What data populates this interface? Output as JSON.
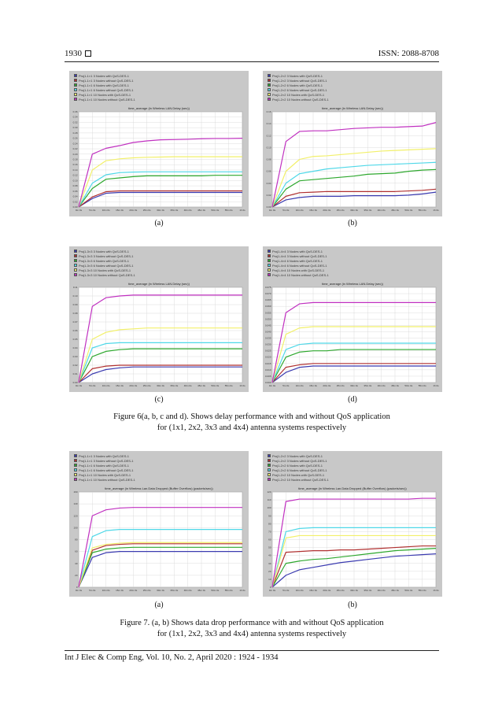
{
  "header": {
    "page_number": "1930",
    "issn": "ISSN: 2088-8708"
  },
  "footer": "Int J Elec & Comp Eng, Vol. 10, No. 2, April 2020 :  1924 - 1934",
  "figure6_caption": [
    "Figure 6(a, b, c and d). Shows delay performance with and without QoS application",
    "for (1x1, 2x2, 3x3 and 4x4) antenna systems respectively"
  ],
  "figure7_caption": [
    "Figure 7. (a, b) Shows data drop performance with and without QoS application",
    "for (1x1, 2x2, 3x3 and 4x4) antenna systems respectively"
  ],
  "subfig_labels": {
    "a": "(a)",
    "b": "(b)",
    "c": "(c)",
    "d": "(d)"
  },
  "chart_data": [
    {
      "type": "line",
      "id": "fig6a",
      "title": "time_average (in Wireless LAN.Delay (sec))",
      "legend": [
        "Proj1-1×1 3 Nodes with QoS-DES-1",
        "Proj1-1×1 3 Nodes without QoS-DES-1",
        "Proj1-1×1 6 Nodes with QoS-DES-1",
        "Proj1-1×1 6 Nodes without QoS-DES-1",
        "Proj1-1×1 10 Nodes with QoS-DES-1",
        "Proj1-1×1 10 Nodes without QoS-DES-1"
      ],
      "colors": [
        "#3b3bb0",
        "#b03030",
        "#2ea82e",
        "#4fd8e8",
        "#f2f06a",
        "#c030c0"
      ],
      "ylim": [
        0,
        0.36
      ],
      "yticks": [
        "0.00",
        "0.02",
        "0.04",
        "0.06",
        "0.08",
        "0.10",
        "0.12",
        "0.14",
        "0.16",
        "0.18",
        "0.20",
        "0.22",
        "0.24",
        "0.26",
        "0.28",
        "0.30",
        "0.32",
        "0.34",
        "0.36"
      ],
      "xticks": [
        "0m 0s",
        "5m 0s",
        "10m 0s",
        "15m 0s",
        "20m 0s",
        "25m 0s",
        "30m 0s",
        "35m 0s",
        "40m 0s",
        "45m 0s",
        "50m 0s",
        "55m 0s",
        "1h 0s"
      ],
      "x": [
        0,
        1,
        2,
        3,
        4,
        5,
        6,
        7,
        8,
        9,
        10,
        11,
        12
      ],
      "series": [
        {
          "values": [
            0.0,
            0.032,
            0.052,
            0.055,
            0.055,
            0.055,
            0.055,
            0.055,
            0.055,
            0.055,
            0.055,
            0.055,
            0.055
          ]
        },
        {
          "values": [
            0.0,
            0.038,
            0.058,
            0.061,
            0.061,
            0.061,
            0.061,
            0.061,
            0.061,
            0.061,
            0.061,
            0.061,
            0.061
          ]
        },
        {
          "values": [
            0.0,
            0.07,
            0.105,
            0.11,
            0.115,
            0.118,
            0.118,
            0.118,
            0.118,
            0.118,
            0.12,
            0.12,
            0.12
          ]
        },
        {
          "values": [
            0.0,
            0.09,
            0.122,
            0.13,
            0.132,
            0.133,
            0.133,
            0.133,
            0.133,
            0.133,
            0.133,
            0.133,
            0.133
          ]
        },
        {
          "values": [
            0.0,
            0.14,
            0.175,
            0.182,
            0.186,
            0.188,
            0.189,
            0.19,
            0.19,
            0.19,
            0.19,
            0.19,
            0.19
          ]
        },
        {
          "values": [
            0.0,
            0.2,
            0.222,
            0.232,
            0.244,
            0.25,
            0.254,
            0.255,
            0.256,
            0.258,
            0.259,
            0.259,
            0.26
          ]
        }
      ]
    },
    {
      "type": "line",
      "id": "fig6b",
      "title": "time_average (in Wireless LAN.Delay (sec))",
      "legend": [
        "Proj1-2×2 3 Nodes with QoS-DES-1",
        "Proj1-2×2 3 Nodes without QoS-DES-1",
        "Proj1-2×2 6 Nodes with QoS-DES-1",
        "Proj1-2×2 6 Nodes without QoS-DES-1",
        "Proj1-2×2 10 Nodes with QoS-DES-1",
        "Proj1-2×2 10 Nodes without QoS-DES-1"
      ],
      "colors": [
        "#3b3bb0",
        "#b03030",
        "#2ea82e",
        "#4fd8e8",
        "#f2f06a",
        "#c030c0"
      ],
      "ylim": [
        0,
        0.16
      ],
      "yticks": [
        "0.00",
        "0.02",
        "0.04",
        "0.06",
        "0.08",
        "0.10",
        "0.12",
        "0.14",
        "0.16"
      ],
      "xticks": [
        "0m 0s",
        "5m 0s",
        "10m 0s",
        "15m 0s",
        "20m 0s",
        "25m 0s",
        "30m 0s",
        "35m 0s",
        "40m 0s",
        "45m 0s",
        "50m 0s",
        "55m 0s",
        "1h 0s"
      ],
      "x": [
        0,
        1,
        2,
        3,
        4,
        5,
        6,
        7,
        8,
        9,
        10,
        11,
        12
      ],
      "series": [
        {
          "values": [
            0.0,
            0.012,
            0.016,
            0.018,
            0.018,
            0.018,
            0.019,
            0.019,
            0.019,
            0.019,
            0.02,
            0.022,
            0.025
          ]
        },
        {
          "values": [
            0.0,
            0.018,
            0.024,
            0.025,
            0.026,
            0.026,
            0.026,
            0.026,
            0.026,
            0.026,
            0.027,
            0.028,
            0.03
          ]
        },
        {
          "values": [
            0.0,
            0.03,
            0.044,
            0.046,
            0.048,
            0.05,
            0.052,
            0.055,
            0.056,
            0.057,
            0.06,
            0.062,
            0.063
          ]
        },
        {
          "values": [
            0.0,
            0.04,
            0.056,
            0.06,
            0.064,
            0.066,
            0.068,
            0.07,
            0.071,
            0.072,
            0.073,
            0.074,
            0.075
          ]
        },
        {
          "values": [
            0.0,
            0.06,
            0.08,
            0.085,
            0.086,
            0.088,
            0.09,
            0.092,
            0.094,
            0.095,
            0.096,
            0.097,
            0.098
          ]
        },
        {
          "values": [
            0.0,
            0.11,
            0.127,
            0.128,
            0.128,
            0.13,
            0.132,
            0.133,
            0.134,
            0.134,
            0.135,
            0.136,
            0.142
          ]
        }
      ]
    },
    {
      "type": "line",
      "id": "fig6c",
      "title": "time_average (in Wireless LAN.Delay (sec))",
      "legend": [
        "Proj1-3×3 3 Nodes with QoS-DES-1",
        "Proj1-3×3 3 Nodes without QoS-DES-1",
        "Proj1-3×3 6 Nodes with QoS-DES-1",
        "Proj1-3×3 6 Nodes without QoS-DES-1",
        "Proj1-3×3 10 Nodes with QoS-DES-1",
        "Proj1-3×3 10 Nodes without QoS-DES-1"
      ],
      "colors": [
        "#3b3bb0",
        "#b03030",
        "#2ea82e",
        "#4fd8e8",
        "#f2f06a",
        "#c030c0"
      ],
      "ylim": [
        0,
        0.11
      ],
      "yticks": [
        "0.00",
        "0.01",
        "0.02",
        "0.03",
        "0.04",
        "0.05",
        "0.06",
        "0.07",
        "0.08",
        "0.09",
        "0.10",
        "0.11"
      ],
      "xticks": [
        "0m 0s",
        "5m 0s",
        "10m 0s",
        "15m 0s",
        "20m 0s",
        "25m 0s",
        "30m 0s",
        "35m 0s",
        "40m 0s",
        "45m 0s",
        "50m 0s",
        "55m 0s",
        "1h 0s"
      ],
      "x": [
        0,
        1,
        2,
        3,
        4,
        5,
        6,
        7,
        8,
        9,
        10,
        11,
        12
      ],
      "series": [
        {
          "values": [
            0.0,
            0.01,
            0.015,
            0.017,
            0.018,
            0.018,
            0.018,
            0.018,
            0.018,
            0.018,
            0.018,
            0.018,
            0.018
          ]
        },
        {
          "values": [
            0.0,
            0.016,
            0.019,
            0.02,
            0.02,
            0.02,
            0.02,
            0.02,
            0.02,
            0.02,
            0.02,
            0.02,
            0.02
          ]
        },
        {
          "values": [
            0.0,
            0.03,
            0.036,
            0.038,
            0.039,
            0.039,
            0.039,
            0.039,
            0.039,
            0.039,
            0.039,
            0.039,
            0.039
          ]
        },
        {
          "values": [
            0.0,
            0.04,
            0.045,
            0.046,
            0.046,
            0.046,
            0.046,
            0.046,
            0.046,
            0.046,
            0.046,
            0.046,
            0.046
          ]
        },
        {
          "values": [
            0.0,
            0.05,
            0.058,
            0.061,
            0.062,
            0.063,
            0.063,
            0.063,
            0.063,
            0.063,
            0.063,
            0.063,
            0.063
          ]
        },
        {
          "values": [
            0.0,
            0.088,
            0.098,
            0.1,
            0.101,
            0.101,
            0.101,
            0.101,
            0.101,
            0.101,
            0.101,
            0.101,
            0.101
          ]
        }
      ]
    },
    {
      "type": "line",
      "id": "fig6d",
      "title": "time_average (in Wireless LAN.Delay (sec))",
      "legend": [
        "Proj1-4×4 3 Nodes with QoS-DES-1",
        "Proj1-4×4 3 Nodes without QoS-DES-1",
        "Proj1-4×4 6 Nodes with QoS-DES-1",
        "Proj1-4×4 6 Nodes without QoS-DES-1",
        "Proj1-4×4 10 Nodes with QoS-DES-1",
        "Proj1-4×4 10 Nodes without QoS-DES-1"
      ],
      "colors": [
        "#3b3bb0",
        "#b03030",
        "#2ea82e",
        "#4fd8e8",
        "#f2f06a",
        "#c030c0"
      ],
      "ylim": [
        0,
        0.075
      ],
      "yticks": [
        "0.000",
        "0.005",
        "0.010",
        "0.015",
        "0.020",
        "0.025",
        "0.030",
        "0.035",
        "0.040",
        "0.045",
        "0.050",
        "0.055",
        "0.060",
        "0.065",
        "0.070",
        "0.075"
      ],
      "xticks": [
        "0m 0s",
        "5m 0s",
        "10m 0s",
        "15m 0s",
        "20m 0s",
        "25m 0s",
        "30m 0s",
        "35m 0s",
        "40m 0s",
        "45m 0s",
        "50m 0s",
        "55m 0s",
        "1h 0s"
      ],
      "x": [
        0,
        1,
        2,
        3,
        4,
        5,
        6,
        7,
        8,
        9,
        10,
        11,
        12
      ],
      "series": [
        {
          "values": [
            0.0,
            0.008,
            0.012,
            0.013,
            0.013,
            0.013,
            0.013,
            0.013,
            0.013,
            0.013,
            0.013,
            0.013,
            0.013
          ]
        },
        {
          "values": [
            0.0,
            0.012,
            0.014,
            0.015,
            0.015,
            0.015,
            0.015,
            0.015,
            0.015,
            0.015,
            0.015,
            0.015,
            0.015
          ]
        },
        {
          "values": [
            0.0,
            0.02,
            0.024,
            0.025,
            0.025,
            0.026,
            0.026,
            0.026,
            0.026,
            0.026,
            0.026,
            0.026,
            0.026
          ]
        },
        {
          "values": [
            0.0,
            0.026,
            0.03,
            0.031,
            0.031,
            0.031,
            0.031,
            0.031,
            0.031,
            0.031,
            0.031,
            0.031,
            0.031
          ]
        },
        {
          "values": [
            0.0,
            0.038,
            0.043,
            0.044,
            0.044,
            0.044,
            0.044,
            0.044,
            0.044,
            0.044,
            0.044,
            0.044,
            0.044
          ]
        },
        {
          "values": [
            0.0,
            0.055,
            0.062,
            0.063,
            0.063,
            0.063,
            0.063,
            0.063,
            0.063,
            0.063,
            0.063,
            0.063,
            0.063
          ]
        }
      ]
    },
    {
      "type": "line",
      "id": "fig7a",
      "title": "time_average (in Wireless Lan.Data Dropped (Buffer Overflow) (packets/sec))",
      "legend": [
        "Proj1-1×1 3 Nodes with QoS-DES-1",
        "Proj1-1×1 3 Nodes without QoS-DES-1",
        "Proj1-1×1 6 Nodes with QoS-DES-1",
        "Proj1-1×1 6 Nodes without QoS-DES-1",
        "Proj1-1×1 10 Nodes with QoS-DES-1",
        "Proj1-1×1 10 Nodes without QoS-DES-1"
      ],
      "colors": [
        "#3b3bb0",
        "#b03030",
        "#2ea82e",
        "#4fd8e8",
        "#f2f06a",
        "#c030c0"
      ],
      "ylim": [
        0,
        160
      ],
      "yticks": [
        "0",
        "20",
        "40",
        "60",
        "80",
        "100",
        "120",
        "140",
        "160"
      ],
      "xticks": [
        "0m 0s",
        "5m 0s",
        "10m 0s",
        "15m 0s",
        "20m 0s",
        "25m 0s",
        "30m 0s",
        "35m 0s",
        "40m 0s",
        "45m 0s",
        "50m 0s",
        "55m 0s",
        "1h 0s"
      ],
      "x": [
        0,
        1,
        2,
        3,
        4,
        5,
        6,
        7,
        8,
        9,
        10,
        11,
        12
      ],
      "series": [
        {
          "values": [
            0,
            50,
            58,
            60,
            60,
            60,
            60,
            60,
            60,
            60,
            60,
            60,
            60
          ]
        },
        {
          "values": [
            0,
            62,
            70,
            72,
            73,
            73,
            73,
            73,
            73,
            73,
            73,
            73,
            73
          ]
        },
        {
          "values": [
            0,
            58,
            64,
            66,
            67,
            67,
            67,
            67,
            67,
            67,
            67,
            67,
            67
          ]
        },
        {
          "values": [
            0,
            85,
            95,
            97,
            97,
            97,
            97,
            97,
            97,
            97,
            97,
            97,
            97
          ]
        },
        {
          "values": [
            0,
            66,
            72,
            74,
            75,
            75,
            75,
            75,
            75,
            75,
            75,
            75,
            75
          ]
        },
        {
          "values": [
            0,
            120,
            130,
            133,
            134,
            134,
            134,
            134,
            134,
            134,
            134,
            134,
            134
          ]
        }
      ]
    },
    {
      "type": "line",
      "id": "fig7b",
      "title": "time_average (in Wireless Lan.Data Dropped (Buffer Overflow) (packets/sec))",
      "legend": [
        "Proj1-2×2 3 Nodes with QoS-DES-1",
        "Proj1-2×2 3 Nodes without QoS-DES-1",
        "Proj1-2×2 6 Nodes with QoS-DES-1",
        "Proj1-2×2 6 Nodes without QoS-DES-1",
        "Proj1-2×2 10 Nodes with QoS-DES-1",
        "Proj1-2×2 10 Nodes without QoS-DES-1"
      ],
      "colors": [
        "#3b3bb0",
        "#b03030",
        "#2ea82e",
        "#4fd8e8",
        "#f2f06a",
        "#c030c0"
      ],
      "ylim": [
        0,
        120
      ],
      "yticks": [
        "0",
        "10",
        "20",
        "30",
        "40",
        "50",
        "60",
        "70",
        "80",
        "90",
        "100",
        "110",
        "120"
      ],
      "xticks": [
        "0m 0s",
        "5m 0s",
        "10m 0s",
        "15m 0s",
        "20m 0s",
        "25m 0s",
        "30m 0s",
        "35m 0s",
        "40m 0s",
        "45m 0s",
        "50m 0s",
        "55m 0s",
        "1h 0s"
      ],
      "x": [
        0,
        1,
        2,
        3,
        4,
        5,
        6,
        7,
        8,
        9,
        10,
        11,
        12
      ],
      "series": [
        {
          "values": [
            0,
            15,
            22,
            25,
            28,
            31,
            33,
            35,
            37,
            39,
            40,
            41,
            42
          ]
        },
        {
          "values": [
            0,
            44,
            45,
            46,
            46,
            47,
            47,
            48,
            49,
            50,
            51,
            52,
            52
          ]
        },
        {
          "values": [
            0,
            30,
            33,
            35,
            36,
            38,
            40,
            42,
            44,
            46,
            47,
            48,
            49
          ]
        },
        {
          "values": [
            0,
            70,
            74,
            75,
            75,
            75,
            75,
            75,
            75,
            75,
            75,
            75,
            75
          ]
        },
        {
          "values": [
            0,
            62,
            65,
            65,
            65,
            65,
            65,
            65,
            65,
            65,
            65,
            65,
            65
          ]
        },
        {
          "values": [
            0,
            108,
            111,
            111,
            111,
            111,
            111,
            111,
            111,
            111,
            111,
            112,
            112
          ]
        }
      ]
    }
  ]
}
